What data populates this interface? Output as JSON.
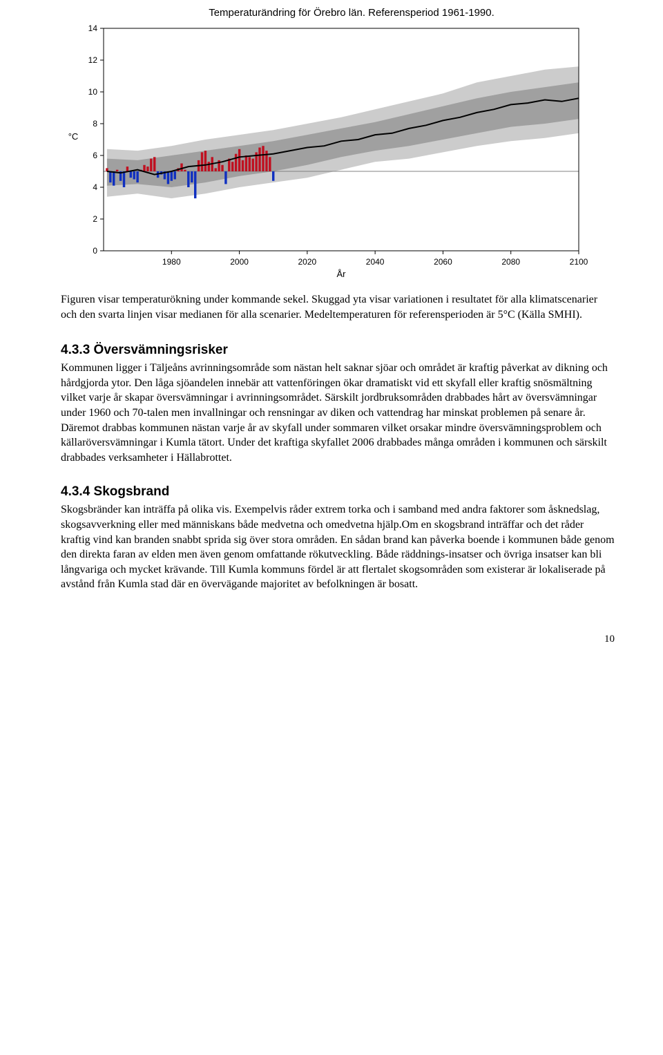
{
  "chart": {
    "type": "line",
    "title": "Temperaturändring för Örebro län. Referensperiod 1961-1990.",
    "ylabel": "°C",
    "xlabel": "År",
    "xlim": [
      1960,
      2100
    ],
    "ylim": [
      0,
      14
    ],
    "xticks": [
      1980,
      2000,
      2020,
      2040,
      2060,
      2080,
      2100
    ],
    "yticks": [
      0,
      2,
      4,
      6,
      8,
      10,
      12,
      14
    ],
    "tick_fontsize": 12,
    "title_fontsize": 15,
    "label_fontsize": 13,
    "background_color": "#ffffff",
    "axis_color": "#000000",
    "reference_line_y": 5.0,
    "reference_line_color": "#808080",
    "band_outer_color": "#cccccc",
    "band_inner_color": "#a0a0a0",
    "median_line_color": "#000000",
    "median_line_width": 2,
    "bars_below_color": "#1030c0",
    "bars_above_color": "#c01020",
    "bar_width": 0.7,
    "band_outer": {
      "x": [
        1961,
        1970,
        1980,
        1990,
        2000,
        2010,
        2020,
        2030,
        2040,
        2050,
        2060,
        2070,
        2080,
        2090,
        2100
      ],
      "low": [
        3.4,
        3.6,
        3.3,
        3.6,
        4.0,
        4.3,
        4.6,
        5.1,
        5.6,
        5.8,
        6.2,
        6.6,
        6.9,
        7.1,
        7.4
      ],
      "high": [
        6.4,
        6.3,
        6.6,
        7.0,
        7.3,
        7.6,
        8.0,
        8.4,
        8.9,
        9.4,
        9.9,
        10.6,
        11.0,
        11.4,
        11.6
      ]
    },
    "band_inner": {
      "x": [
        1961,
        1970,
        1980,
        1990,
        2000,
        2010,
        2020,
        2030,
        2040,
        2050,
        2060,
        2070,
        2080,
        2090,
        2100
      ],
      "low": [
        4.1,
        4.2,
        4.0,
        4.3,
        4.7,
        5.0,
        5.4,
        5.9,
        6.3,
        6.6,
        7.0,
        7.4,
        7.8,
        8.0,
        8.3
      ],
      "high": [
        5.8,
        5.7,
        6.0,
        6.3,
        6.6,
        6.9,
        7.3,
        7.7,
        8.1,
        8.6,
        9.1,
        9.6,
        10.0,
        10.3,
        10.6
      ]
    },
    "median": {
      "x": [
        1961,
        1965,
        1970,
        1975,
        1980,
        1985,
        1990,
        1995,
        2000,
        2005,
        2010,
        2015,
        2020,
        2025,
        2030,
        2035,
        2040,
        2045,
        2050,
        2055,
        2060,
        2065,
        2070,
        2075,
        2080,
        2085,
        2090,
        2095,
        2100
      ],
      "y": [
        5.0,
        4.9,
        5.1,
        4.8,
        5.0,
        5.3,
        5.4,
        5.6,
        5.9,
        6.0,
        6.1,
        6.3,
        6.5,
        6.6,
        6.9,
        7.0,
        7.3,
        7.4,
        7.7,
        7.9,
        8.2,
        8.4,
        8.7,
        8.9,
        9.2,
        9.3,
        9.5,
        9.4,
        9.6
      ]
    },
    "observed_bars": {
      "years": [
        1961,
        1962,
        1963,
        1964,
        1965,
        1966,
        1967,
        1968,
        1969,
        1970,
        1971,
        1972,
        1973,
        1974,
        1975,
        1976,
        1977,
        1978,
        1979,
        1980,
        1981,
        1982,
        1983,
        1984,
        1985,
        1986,
        1987,
        1988,
        1989,
        1990,
        1991,
        1992,
        1993,
        1994,
        1995,
        1996,
        1997,
        1998,
        1999,
        2000,
        2001,
        2002,
        2003,
        2004,
        2005,
        2006,
        2007,
        2008,
        2009,
        2010
      ],
      "values": [
        5.2,
        4.3,
        4.1,
        5.1,
        4.4,
        4.0,
        5.3,
        4.6,
        4.5,
        4.3,
        5.1,
        5.4,
        5.3,
        5.8,
        5.9,
        4.6,
        4.8,
        4.5,
        4.2,
        4.4,
        4.5,
        5.2,
        5.5,
        5.1,
        4.0,
        4.3,
        3.3,
        5.7,
        6.2,
        6.3,
        5.6,
        5.9,
        5.2,
        5.7,
        5.4,
        4.2,
        5.8,
        5.6,
        6.1,
        6.4,
        5.7,
        6.0,
        5.9,
        5.8,
        6.2,
        6.5,
        6.6,
        6.3,
        5.9,
        4.4
      ]
    }
  },
  "caption": "Figuren visar temperaturökning under kommande sekel. Skuggad yta visar variationen i resultatet för alla klimatscenarier och den svarta linjen visar medianen för alla scenarier. Medeltemperaturen för referensperioden är 5°C  (Källa SMHI).",
  "sec1_heading": "4.3.3 Översvämningsrisker",
  "sec1_body": "Kommunen ligger i Täljeåns avrinningsområde som nästan helt saknar sjöar och området är kraftig påverkat av dikning och hårdgjorda ytor. Den låga sjöandelen innebär att vattenföringen ökar dramatiskt vid ett skyfall eller kraftig snösmältning vilket varje år skapar översvämningar i avrinningsområdet. Särskilt jordbruksområden drabbades hårt av översvämningar under 1960 och 70-talen men invallningar och rensningar av diken och vattendrag har minskat problemen på senare år. Däremot drabbas kommunen nästan varje år av skyfall under sommaren vilket orsakar mindre översvämningsproblem och källaröversvämningar i Kumla tätort. Under det kraftiga skyfallet 2006 drabbades många områden i kommunen och särskilt drabbades verksamheter i Hällabrottet.",
  "sec2_heading": "4.3.4 Skogsbrand",
  "sec2_body": "Skogsbränder kan inträffa på olika vis. Exempelvis råder extrem torka och i samband med andra faktorer som åsknedslag, skogsavverkning eller med människans både medvetna och omedvetna hjälp.Om en skogsbrand inträffar och det råder kraftig vind kan branden snabbt sprida sig över stora områden. En sådan brand kan påverka boende i kommunen både genom den direkta faran av elden men även genom omfattande rökutveckling. Både räddnings-insatser och övriga insatser kan bli långvariga och mycket krävande. Till Kumla kommuns fördel är att flertalet skogsområden som existerar är lokaliserade på avstånd från Kumla stad där en övervägande majoritet av befolkningen är bosatt.",
  "page_number": "10"
}
